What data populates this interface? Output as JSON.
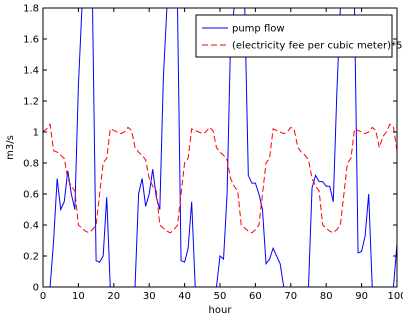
{
  "chart_data": {
    "type": "line",
    "title": "",
    "xlabel": "hour",
    "ylabel": "m3/s",
    "xlim": [
      0,
      100
    ],
    "ylim": [
      0,
      1.8
    ],
    "grid": false,
    "legend_position": "top-right",
    "xticks": [
      0,
      10,
      20,
      30,
      40,
      50,
      60,
      70,
      80,
      90,
      100
    ],
    "yticks": [
      0,
      0.2,
      0.4,
      0.6,
      0.8,
      1,
      1.2,
      1.4,
      1.6,
      1.8
    ],
    "xtick_labels": [
      "0",
      "10",
      "20",
      "30",
      "40",
      "50",
      "60",
      "70",
      "80",
      "90",
      "100"
    ],
    "ytick_labels": [
      "0",
      "0.2",
      "0.4",
      "0.6",
      "0.8",
      "1",
      "1.2",
      "1.4",
      "1.6",
      "1.8"
    ],
    "series": [
      {
        "name": "pump flow",
        "color": "#0000ff",
        "style": "solid",
        "x": [
          0,
          1,
          2,
          3,
          4,
          5,
          6,
          7,
          8,
          9,
          10,
          11,
          12,
          13,
          14,
          15,
          16,
          17,
          18,
          19,
          20,
          21,
          22,
          23,
          24,
          25,
          26,
          27,
          28,
          29,
          30,
          31,
          32,
          33,
          34,
          35,
          36,
          37,
          38,
          39,
          40,
          41,
          42,
          43,
          44,
          45,
          46,
          47,
          48,
          49,
          50,
          51,
          52,
          53,
          54,
          55,
          56,
          57,
          58,
          59,
          60,
          61,
          62,
          63,
          64,
          65,
          66,
          67,
          68,
          69,
          70,
          71,
          72,
          73,
          74,
          75,
          76,
          77,
          78,
          79,
          80,
          81,
          82,
          83,
          84,
          85,
          86,
          87,
          88,
          89,
          90,
          91,
          92,
          93,
          94,
          95,
          96,
          97,
          98,
          99,
          100
        ],
        "y": [
          0,
          0,
          0,
          0.3,
          0.7,
          0.5,
          0.55,
          0.75,
          0.6,
          0.5,
          1.3,
          1.8,
          1.8,
          1.8,
          1.8,
          0.17,
          0.16,
          0.2,
          0.58,
          0,
          0,
          0,
          0,
          0,
          0,
          0,
          0,
          0.6,
          0.7,
          0.52,
          0.6,
          0.76,
          0.58,
          0.5,
          1.35,
          1.8,
          1.8,
          1.8,
          1.8,
          0.17,
          0.16,
          0.25,
          0.55,
          0,
          0,
          0,
          0,
          0,
          0,
          0,
          0.2,
          0.18,
          0.6,
          1.6,
          1.8,
          1.8,
          1.8,
          1.8,
          0.72,
          0.67,
          0.67,
          0.6,
          0.5,
          0.15,
          0.18,
          0.25,
          0.2,
          0.15,
          0,
          0,
          0,
          0,
          0,
          0,
          0,
          0,
          0.64,
          0.72,
          0.68,
          0.68,
          0.65,
          0.65,
          0.55,
          1.25,
          1.8,
          1.8,
          1.8,
          1.8,
          1.8,
          0.22,
          0.23,
          0.33,
          0.6,
          0,
          0,
          0,
          0,
          0,
          0,
          0,
          0.28
        ]
      },
      {
        "name": "(electricity fee per cubic meter)*5",
        "color": "#ff0000",
        "style": "dashed",
        "x": [
          0,
          1,
          2,
          3,
          4,
          5,
          6,
          7,
          8,
          9,
          10,
          11,
          12,
          13,
          14,
          15,
          16,
          17,
          18,
          19,
          20,
          21,
          22,
          23,
          24,
          25,
          26,
          27,
          28,
          29,
          30,
          31,
          32,
          33,
          34,
          35,
          36,
          37,
          38,
          39,
          40,
          41,
          42,
          43,
          44,
          45,
          46,
          47,
          48,
          49,
          50,
          51,
          52,
          53,
          54,
          55,
          56,
          57,
          58,
          59,
          60,
          61,
          62,
          63,
          64,
          65,
          66,
          67,
          68,
          69,
          70,
          71,
          72,
          73,
          74,
          75,
          76,
          77,
          78,
          79,
          80,
          81,
          82,
          83,
          84,
          85,
          86,
          87,
          88,
          89,
          90,
          91,
          92,
          93,
          94,
          95,
          96,
          97,
          98,
          99,
          100
        ],
        "y": [
          1.0,
          1.02,
          1.05,
          0.88,
          0.87,
          0.85,
          0.83,
          0.7,
          0.65,
          0.62,
          0.4,
          0.38,
          0.36,
          0.35,
          0.37,
          0.4,
          0.6,
          0.8,
          0.83,
          1.02,
          1.01,
          1.0,
          0.99,
          1.0,
          1.03,
          1.01,
          0.9,
          0.87,
          0.85,
          0.82,
          0.7,
          0.65,
          0.62,
          0.4,
          0.38,
          0.36,
          0.35,
          0.37,
          0.4,
          0.6,
          0.8,
          0.83,
          1.02,
          1.01,
          1.0,
          0.99,
          1.0,
          1.03,
          1.01,
          0.9,
          0.87,
          0.85,
          0.82,
          0.7,
          0.65,
          0.62,
          0.4,
          0.38,
          0.36,
          0.35,
          0.37,
          0.4,
          0.6,
          0.8,
          0.83,
          1.02,
          1.01,
          1.0,
          0.99,
          1.0,
          1.03,
          1.01,
          0.9,
          0.87,
          0.85,
          0.82,
          0.7,
          0.65,
          0.62,
          0.4,
          0.38,
          0.36,
          0.35,
          0.37,
          0.4,
          0.6,
          0.8,
          0.83,
          1.02,
          1.01,
          1.0,
          0.99,
          1.0,
          1.03,
          1.01,
          0.9,
          0.97,
          1.0,
          1.05,
          1.03,
          0.88
        ]
      }
    ]
  }
}
